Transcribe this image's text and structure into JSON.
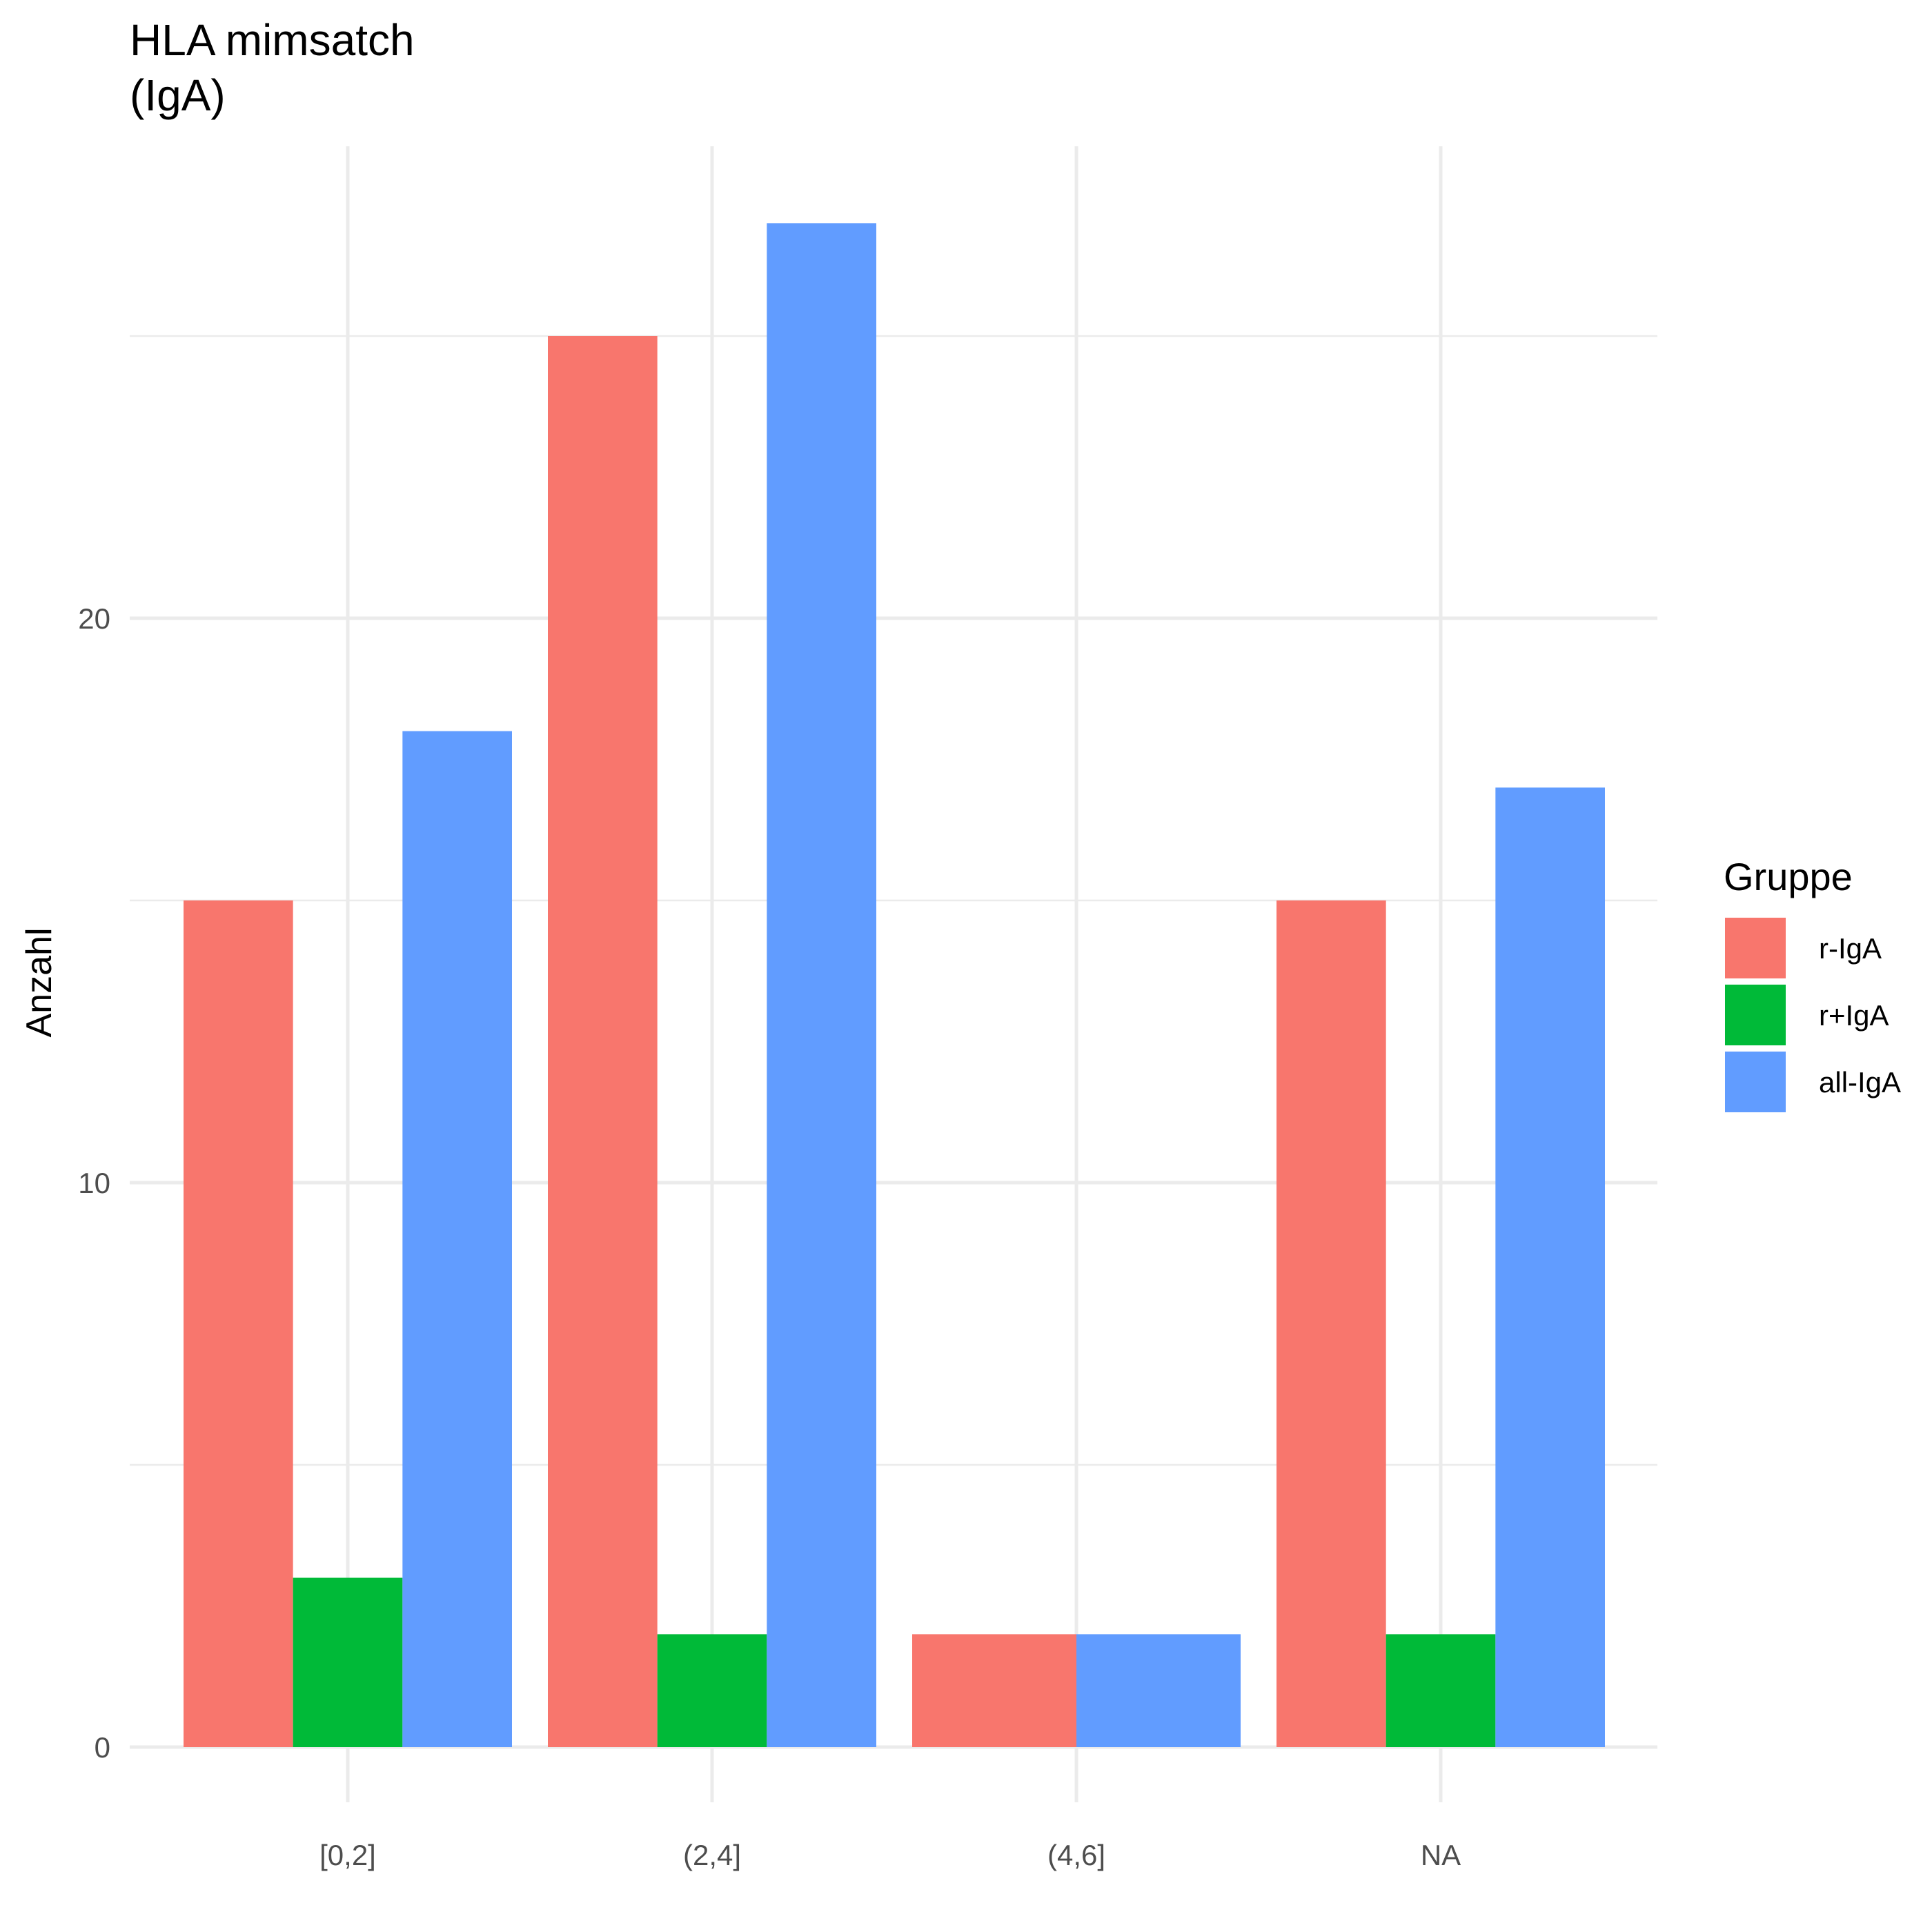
{
  "chart_data": {
    "type": "bar",
    "title_lines": [
      "HLA mimsatch",
      "(IgA)"
    ],
    "xlabel": "",
    "ylabel": "Anzahl",
    "categories": [
      "[0,2]",
      "(2,4]",
      "(4,6]",
      "NA"
    ],
    "ylim": [
      0,
      27
    ],
    "yticks": [
      0,
      10,
      20
    ],
    "grid": true,
    "legend": {
      "title": "Gruppe",
      "position": "right"
    },
    "series": [
      {
        "name": "r-IgA",
        "color": "#F8766D",
        "values": [
          15,
          25,
          2,
          15
        ]
      },
      {
        "name": "r+IgA",
        "color": "#00BA38",
        "values": [
          3,
          2,
          0,
          2
        ]
      },
      {
        "name": "all-IgA",
        "color": "#619CFF",
        "values": [
          18,
          27,
          2,
          17
        ]
      }
    ]
  }
}
